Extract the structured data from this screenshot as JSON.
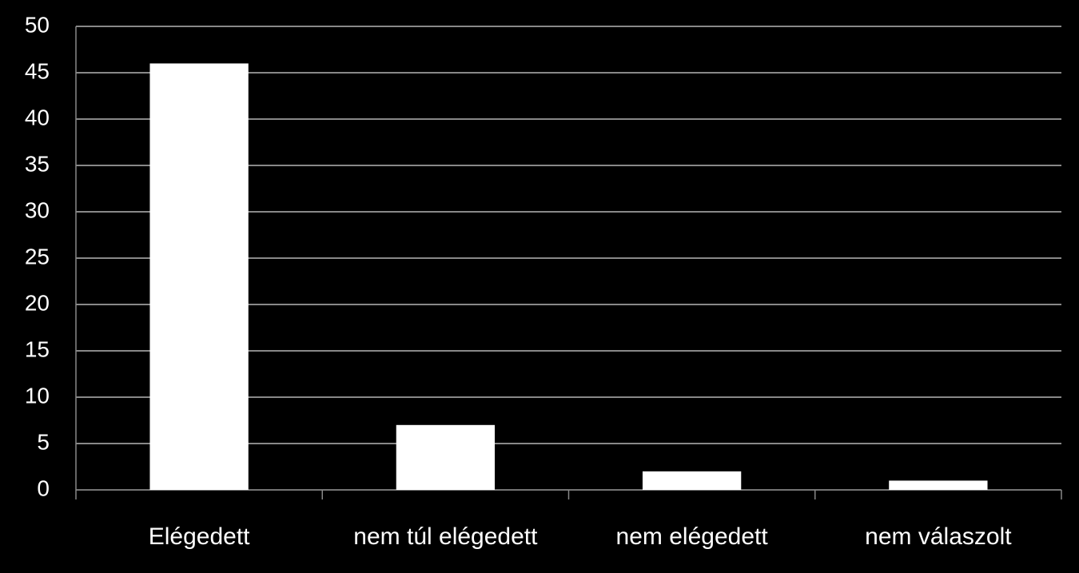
{
  "chart_data": {
    "type": "bar",
    "categories": [
      "Elégedett",
      "nem túl elégedett",
      "nem elégedett",
      "nem válaszolt"
    ],
    "values": [
      46,
      7,
      2,
      1
    ],
    "color": "#ffffff",
    "ylim": [
      0,
      50
    ],
    "yticks": [
      0,
      5,
      10,
      15,
      20,
      25,
      30,
      35,
      40,
      45,
      50
    ],
    "grid": true
  }
}
